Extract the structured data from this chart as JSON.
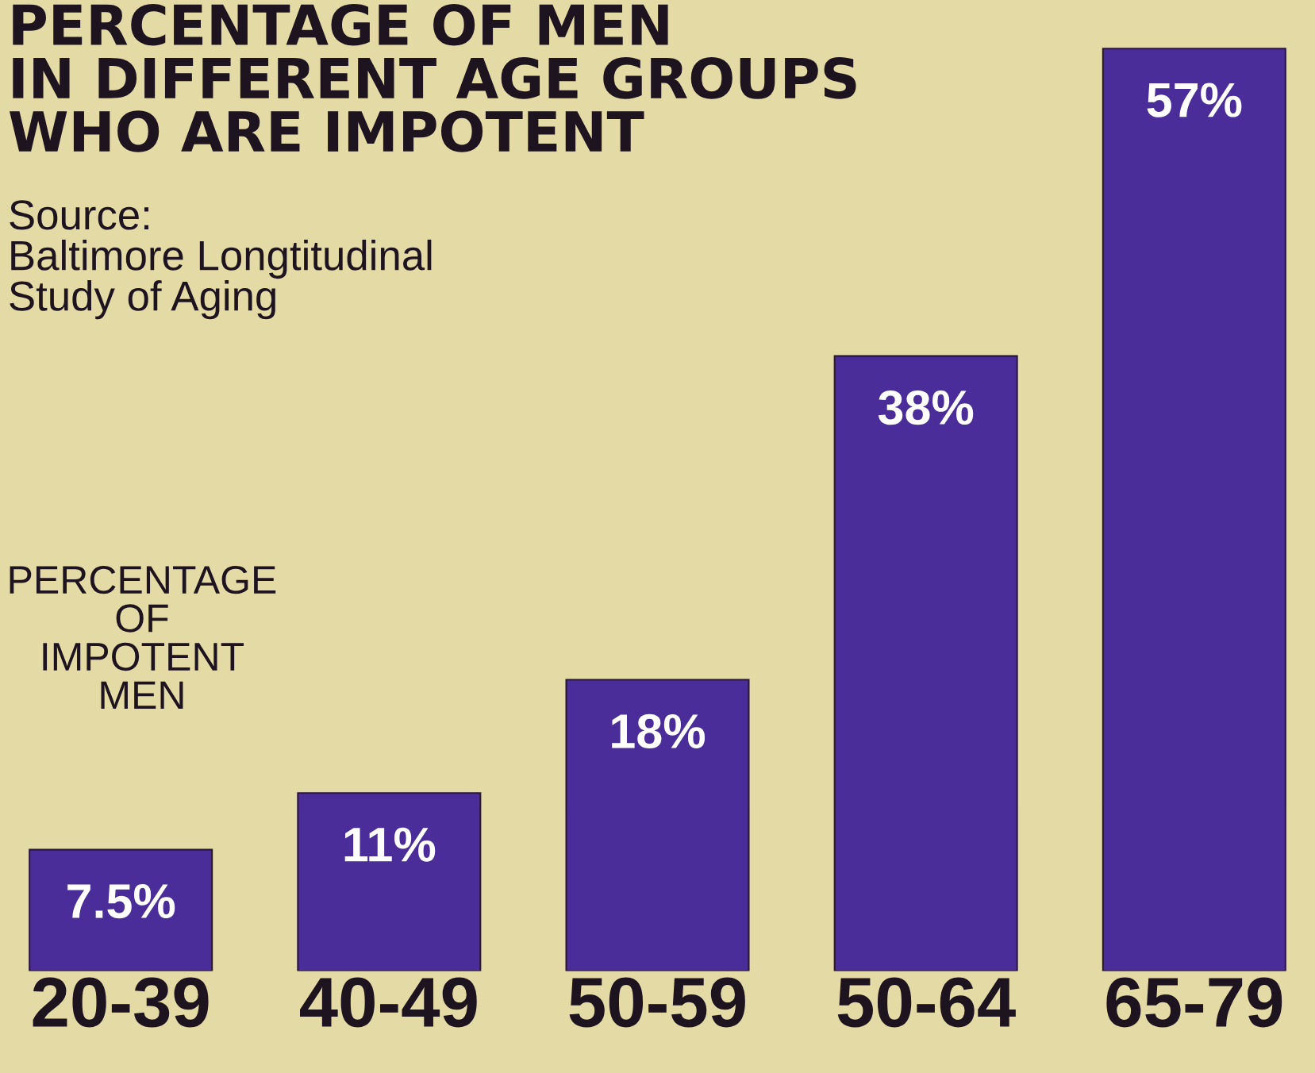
{
  "chart_data": {
    "type": "bar",
    "title": "PERCENTAGE OF MEN\nIN DIFFERENT AGE GROUPS\nWHO ARE IMPOTENT",
    "ylabel": "PERCENTAGE\nOF\nIMPOTENT\nMEN",
    "annotations": [
      "Source:\nBaltimore Longtitudinal\nStudy of Aging"
    ],
    "categories": [
      "20-39",
      "40-49",
      "50-59",
      "50-64",
      "65-79"
    ],
    "values": [
      7.5,
      11,
      18,
      38,
      57
    ],
    "color": "#4b2d9a",
    "value_labels": [
      "7.5%",
      "11%",
      "18%",
      "38%",
      "57%"
    ],
    "ylim": [
      0,
      60
    ],
    "tick_labels": "x"
  }
}
